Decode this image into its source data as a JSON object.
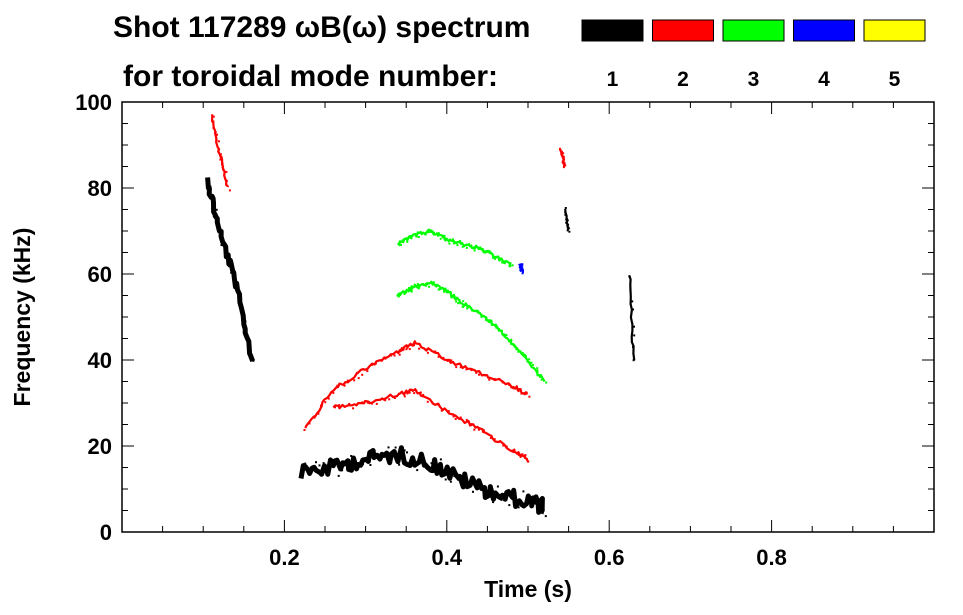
{
  "title_line1": "Shot 117289 ωB(ω) spectrum",
  "title_line2": "for toroidal mode number:",
  "chart_data": {
    "type": "scatter",
    "xlabel": "Time (s)",
    "ylabel": "Frequency (kHz)",
    "xlim": [
      0.0,
      1.0
    ],
    "ylim": [
      0,
      100
    ],
    "xticks": [
      0.2,
      0.4,
      0.6,
      0.8
    ],
    "xtick_labels": [
      "0.2",
      "0.4",
      "0.6",
      "0.8"
    ],
    "yticks": [
      0,
      20,
      40,
      60,
      80,
      100
    ],
    "ytick_labels": [
      "0",
      "20",
      "40",
      "60",
      "80",
      "100"
    ],
    "grid": false,
    "legend_position": "top-right",
    "legend": [
      {
        "label": "1",
        "color": "#000000"
      },
      {
        "label": "2",
        "color": "#ff0000"
      },
      {
        "label": "3",
        "color": "#00ff00"
      },
      {
        "label": "4",
        "color": "#0000ff"
      },
      {
        "label": "5",
        "color": "#ffff00"
      }
    ],
    "series": [
      {
        "name": "1",
        "color": "#000000",
        "segments": [
          {
            "x": [
              0.105,
              0.12,
              0.14,
              0.16
            ],
            "y": [
              82,
              70,
              58,
              40
            ]
          },
          {
            "x": [
              0.22,
              0.26,
              0.3,
              0.34,
              0.38,
              0.42,
              0.46,
              0.5,
              0.52
            ],
            "y": [
              14,
              15,
              17,
              18,
              16,
              12,
              9,
              7,
              6
            ]
          },
          {
            "x": [
              0.545,
              0.55
            ],
            "y": [
              75,
              70
            ]
          },
          {
            "x": [
              0.625,
              0.63
            ],
            "y": [
              60,
              40
            ]
          }
        ]
      },
      {
        "name": "2",
        "color": "#ff0000",
        "segments": [
          {
            "x": [
              0.11,
              0.12,
              0.13
            ],
            "y": [
              97,
              88,
              80
            ]
          },
          {
            "x": [
              0.225,
              0.26,
              0.3,
              0.34,
              0.36,
              0.4,
              0.44,
              0.48,
              0.5
            ],
            "y": [
              24,
              33,
              38,
              42,
              44,
              40,
              37,
              34,
              32
            ]
          },
          {
            "x": [
              0.26,
              0.3,
              0.34,
              0.36,
              0.4,
              0.44,
              0.48,
              0.5
            ],
            "y": [
              29,
              30,
              32,
              33,
              28,
              24,
              19,
              17
            ]
          },
          {
            "x": [
              0.54,
              0.545
            ],
            "y": [
              89,
              85
            ]
          }
        ]
      },
      {
        "name": "3",
        "color": "#00ff00",
        "segments": [
          {
            "x": [
              0.34,
              0.36,
              0.38,
              0.4,
              0.42,
              0.44,
              0.46,
              0.48
            ],
            "y": [
              67,
              69,
              70,
              68,
              67,
              66,
              64,
              62
            ]
          },
          {
            "x": [
              0.34,
              0.36,
              0.38,
              0.4,
              0.42,
              0.44,
              0.46,
              0.48,
              0.5,
              0.52
            ],
            "y": [
              55,
              57,
              58,
              56,
              53,
              51,
              48,
              44,
              40,
              35
            ]
          }
        ]
      },
      {
        "name": "4",
        "color": "#0000ff",
        "segments": [
          {
            "x": [
              0.49,
              0.492
            ],
            "y": [
              62,
              61
            ]
          }
        ]
      },
      {
        "name": "5",
        "color": "#ffff00",
        "segments": []
      }
    ]
  }
}
